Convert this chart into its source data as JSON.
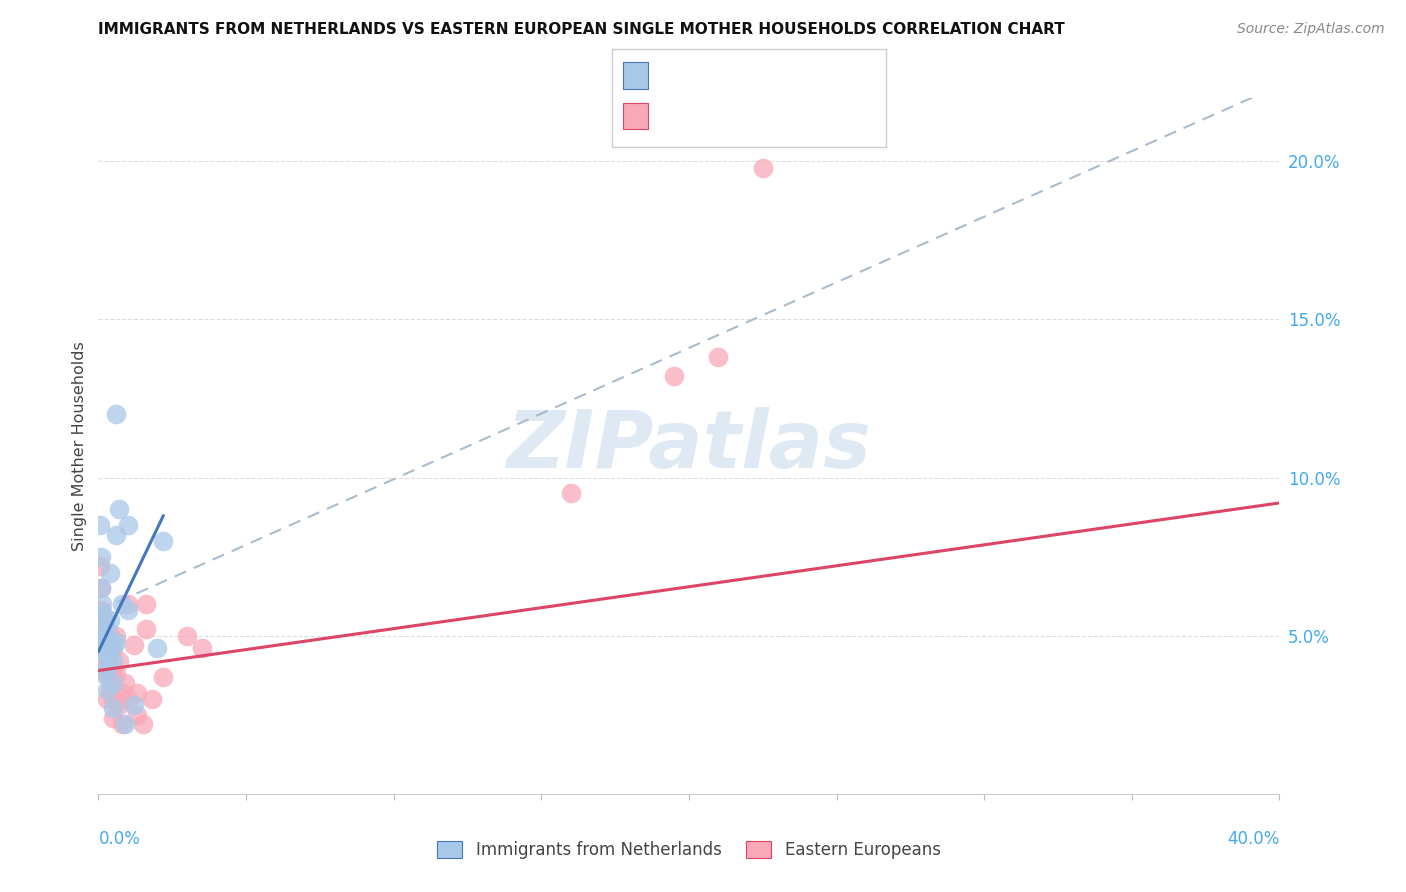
{
  "title": "IMMIGRANTS FROM NETHERLANDS VS EASTERN EUROPEAN SINGLE MOTHER HOUSEHOLDS CORRELATION CHART",
  "source": "Source: ZipAtlas.com",
  "ylabel": "Single Mother Households",
  "watermark": "ZIPatlas",
  "blue_scatter_color": "#a8c8e8",
  "pink_scatter_color": "#f8a8b8",
  "blue_line_color": "#4477bb",
  "pink_line_color": "#dd4466",
  "dashed_line_color": "#aabbcc",
  "axis_label_color": "#44aaee",
  "grid_color": "#dddddd",
  "title_color": "#111111",
  "source_color": "#888888",
  "ylabel_color": "#444444",
  "netherlands_x": [
    0.0006,
    0.001,
    0.001,
    0.0013,
    0.0015,
    0.0015,
    0.002,
    0.002,
    0.002,
    0.002,
    0.003,
    0.003,
    0.003,
    0.003,
    0.003,
    0.004,
    0.004,
    0.004,
    0.005,
    0.005,
    0.005,
    0.005,
    0.006,
    0.006,
    0.006,
    0.007,
    0.008,
    0.009,
    0.01,
    0.01,
    0.012,
    0.02,
    0.022
  ],
  "netherlands_y": [
    0.085,
    0.075,
    0.065,
    0.06,
    0.057,
    0.05,
    0.055,
    0.05,
    0.045,
    0.038,
    0.052,
    0.048,
    0.044,
    0.04,
    0.033,
    0.07,
    0.055,
    0.048,
    0.047,
    0.042,
    0.035,
    0.027,
    0.12,
    0.082,
    0.048,
    0.09,
    0.06,
    0.022,
    0.085,
    0.058,
    0.028,
    0.046,
    0.08
  ],
  "eastern_x": [
    0.0006,
    0.0008,
    0.001,
    0.001,
    0.0015,
    0.002,
    0.002,
    0.002,
    0.0025,
    0.003,
    0.003,
    0.003,
    0.003,
    0.004,
    0.004,
    0.004,
    0.004,
    0.005,
    0.005,
    0.005,
    0.005,
    0.006,
    0.006,
    0.007,
    0.007,
    0.008,
    0.008,
    0.009,
    0.01,
    0.01,
    0.012,
    0.013,
    0.013,
    0.015,
    0.016,
    0.016,
    0.018,
    0.022,
    0.03,
    0.035,
    0.16,
    0.195,
    0.21,
    0.225
  ],
  "eastern_y": [
    0.072,
    0.065,
    0.058,
    0.048,
    0.055,
    0.053,
    0.048,
    0.04,
    0.048,
    0.048,
    0.044,
    0.038,
    0.03,
    0.05,
    0.046,
    0.04,
    0.033,
    0.046,
    0.038,
    0.03,
    0.024,
    0.05,
    0.038,
    0.042,
    0.028,
    0.032,
    0.022,
    0.035,
    0.06,
    0.03,
    0.047,
    0.032,
    0.025,
    0.022,
    0.052,
    0.06,
    0.03,
    0.037,
    0.05,
    0.046,
    0.095,
    0.132,
    0.138,
    0.198
  ],
  "xlim": [
    0.0,
    0.4
  ],
  "ylim": [
    0.0,
    0.22
  ],
  "yticks": [
    0.05,
    0.1,
    0.15,
    0.2
  ],
  "ytick_labels": [
    "5.0%",
    "10.0%",
    "15.0%",
    "20.0%"
  ],
  "blue_trend_x": [
    0.0,
    0.022
  ],
  "blue_trend_y": [
    0.045,
    0.088
  ],
  "pink_trend_x": [
    0.0,
    0.4
  ],
  "pink_trend_y": [
    0.039,
    0.092
  ],
  "dash_trend_x": [
    0.0,
    0.4
  ],
  "dash_trend_y": [
    0.058,
    0.224
  ],
  "bottom_legend_labels": [
    "Immigrants from Netherlands",
    "Eastern Europeans"
  ]
}
